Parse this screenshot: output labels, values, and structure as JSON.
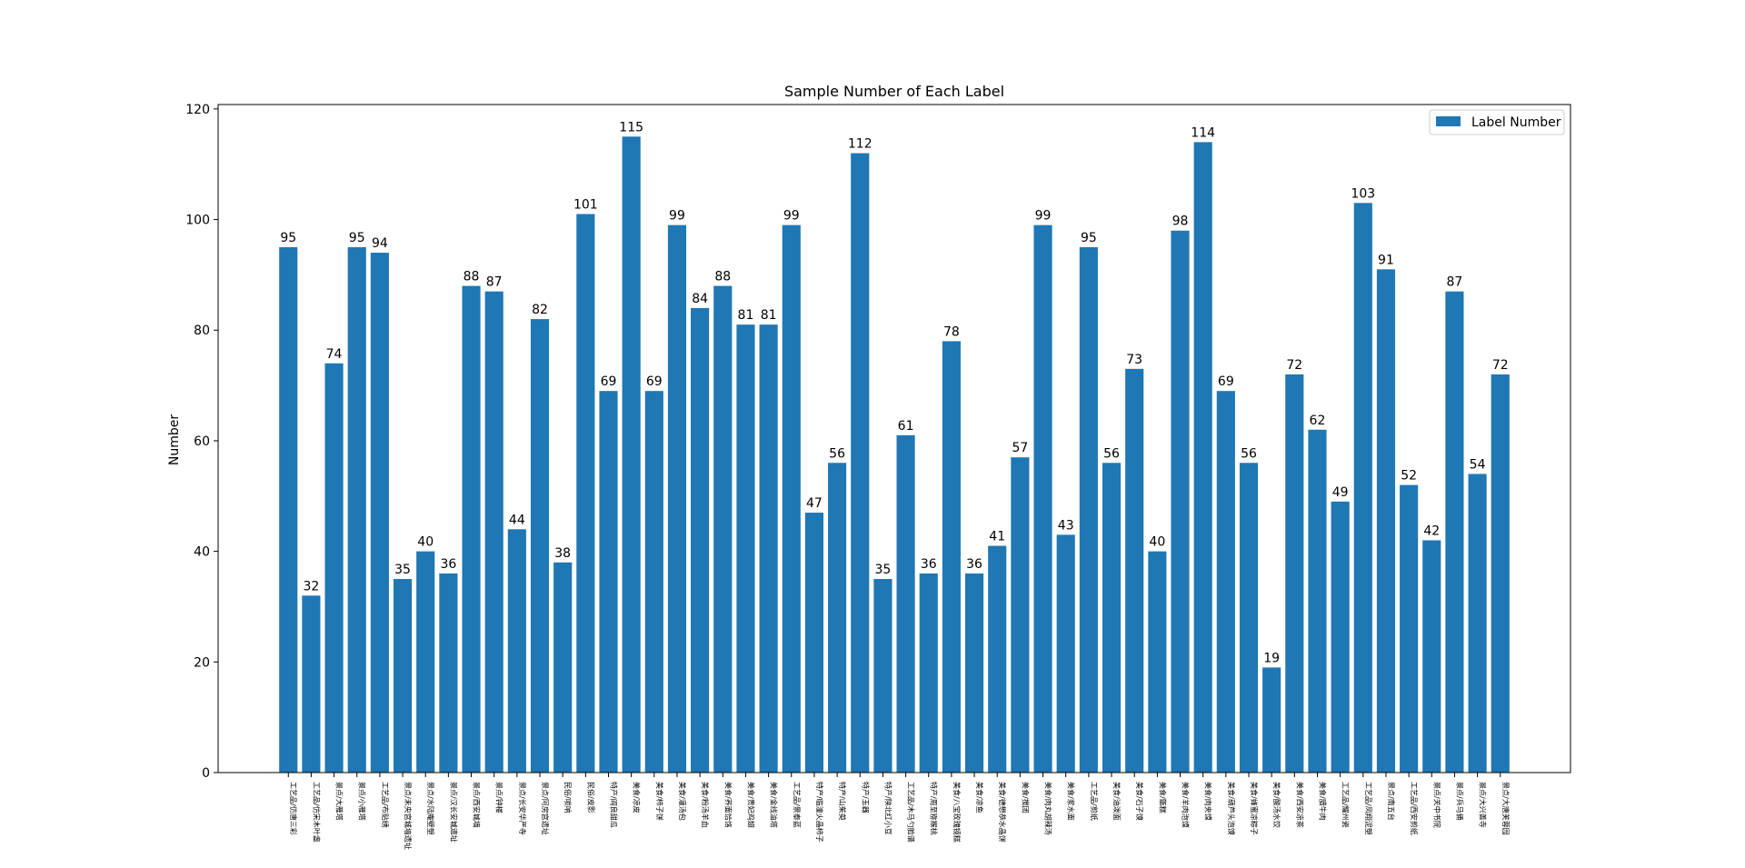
{
  "chart_data": {
    "type": "bar",
    "title": "Sample Number of Each Label",
    "y_label": "Number",
    "categories": [
      "工艺品/仿唐三彩",
      "工艺品/仿宋木叶盏",
      "景点/大雁塔",
      "景点/小雁塔",
      "工艺品/布贴绣",
      "景点/未央宫城墙遗址",
      "景点/水陆庵壁塑",
      "景点/汉长安城遗址",
      "景点/西安城墙",
      "景点/钟楼",
      "景点/长安华严寺",
      "景点/阿房宫遗址",
      "民俗/唢呐",
      "民俗/皮影",
      "特产/阎良甜瓜",
      "美食/凉皮",
      "美食/柿子饼",
      "美食/灌汤包",
      "美食/粉汤羊血",
      "美食/荞面饸饹",
      "美食/贵妃鸡翅",
      "美食/金线油塔",
      "工艺品/景泰蓝",
      "特产/临潼火晶柿子",
      "特产/山茱萸",
      "特产/玉器",
      "特产/陕北红小豆",
      "工艺品/木马勺脸谱",
      "特产/周至猕猴桃",
      "美食/八宝玫瑰镜糕",
      "美食/凉鱼",
      "美食/德懋恭水晶饼",
      "美食/搅团",
      "美食/肉丸胡辣汤",
      "美食/浆水面",
      "工艺品/剪纸",
      "美食/油泼面",
      "美食/石子馍",
      "美食/甑糕",
      "美食/羊肉泡馍",
      "美食/肉夹馍",
      "美食/葫芦头泡馍",
      "美食/蜂蜜凉粽子",
      "美食/酸汤水饺",
      "美食/西安凉茶",
      "美食/腊牛肉",
      "工艺品/耀州瓷",
      "工艺品/凤翔泥塑",
      "景点/南五台",
      "工艺品/西安剪纸",
      "景点/关中书院",
      "景点/兵马俑",
      "景点/大兴善寺",
      "景点/大唐芙蓉园"
    ],
    "series": [
      {
        "name": "Label Number",
        "color": "#1f77b4",
        "values": [
          95,
          32,
          74,
          95,
          94,
          35,
          40,
          36,
          88,
          87,
          44,
          82,
          38,
          101,
          69,
          115,
          69,
          99,
          84,
          88,
          81,
          81,
          99,
          47,
          56,
          112,
          35,
          61,
          36,
          78,
          36,
          41,
          57,
          99,
          43,
          95,
          56,
          73,
          40,
          98,
          114,
          69,
          56,
          19,
          72,
          62,
          49,
          103,
          91,
          52,
          42,
          87,
          54,
          72
        ]
      }
    ],
    "ylim": [
      0,
      120.8
    ],
    "yticks": [
      0,
      20,
      40,
      60,
      80,
      100,
      120
    ],
    "legend": "upper right"
  }
}
